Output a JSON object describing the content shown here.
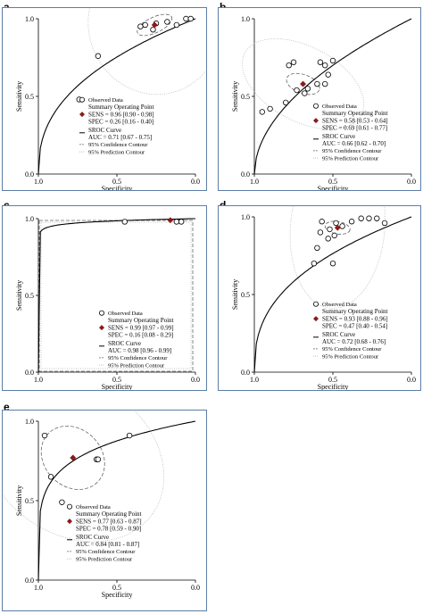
{
  "chart_data": [
    {
      "id": "a",
      "type": "scatter",
      "xlabel": "Specificity",
      "ylabel": "Sensitivity",
      "xticks": [
        "1.0",
        "0.5",
        "0.0"
      ],
      "yticks": [
        "0.0",
        "0.5",
        "1.0"
      ],
      "xlim": [
        1.0,
        0.0
      ],
      "ylim": [
        0.0,
        1.0
      ],
      "points": [
        {
          "spec": 0.74,
          "sens": 0.48
        },
        {
          "spec": 0.62,
          "sens": 0.76
        },
        {
          "spec": 0.35,
          "sens": 0.95
        },
        {
          "spec": 0.32,
          "sens": 0.96
        },
        {
          "spec": 0.27,
          "sens": 0.93
        },
        {
          "spec": 0.25,
          "sens": 0.97
        },
        {
          "spec": 0.18,
          "sens": 0.98
        },
        {
          "spec": 0.12,
          "sens": 0.96
        },
        {
          "spec": 0.06,
          "sens": 1.0
        },
        {
          "spec": 0.03,
          "sens": 1.0
        }
      ],
      "summary_point": {
        "spec": 0.26,
        "sens": 0.96
      },
      "curve_auc": 0.71,
      "legend": {
        "observed": "Observed Data",
        "summary": "Summary Operating Point",
        "sens": "SENS = 0.96 [0.90 - 0.98]",
        "spec": "SPEC = 0.26 [0.16 - 0.40]",
        "sroc": "SROC Curve",
        "auc": "AUC = 0.71 [0.67 - 0.75]",
        "conf": "95% Confidence Contour",
        "pred": "95% Prediction Contour"
      }
    },
    {
      "id": "b",
      "type": "scatter",
      "xlabel": "Specificity",
      "ylabel": "Sensitivity",
      "xticks": [
        "1.0",
        "0.5",
        "0.0"
      ],
      "yticks": [
        "0.0",
        "0.5",
        "1.0"
      ],
      "xlim": [
        1.0,
        0.0
      ],
      "ylim": [
        0.0,
        1.0
      ],
      "points": [
        {
          "spec": 0.95,
          "sens": 0.4
        },
        {
          "spec": 0.9,
          "sens": 0.42
        },
        {
          "spec": 0.8,
          "sens": 0.46
        },
        {
          "spec": 0.78,
          "sens": 0.7
        },
        {
          "spec": 0.75,
          "sens": 0.72
        },
        {
          "spec": 0.73,
          "sens": 0.54
        },
        {
          "spec": 0.68,
          "sens": 0.52
        },
        {
          "spec": 0.66,
          "sens": 0.55
        },
        {
          "spec": 0.6,
          "sens": 0.58
        },
        {
          "spec": 0.58,
          "sens": 0.72
        },
        {
          "spec": 0.55,
          "sens": 0.7
        },
        {
          "spec": 0.55,
          "sens": 0.58
        },
        {
          "spec": 0.53,
          "sens": 0.64
        },
        {
          "spec": 0.5,
          "sens": 0.73
        }
      ],
      "summary_point": {
        "spec": 0.69,
        "sens": 0.58
      },
      "curve_auc": 0.66,
      "legend": {
        "observed": "Observed Data",
        "summary": "Summary Operating Point",
        "sens": "SENS = 0.58 [0.53 - 0.64]",
        "spec": "SPEC = 0.69 [0.61 - 0.77]",
        "sroc": "SROC Curve",
        "auc": "AUC = 0.66 [0.62 - 0.70]",
        "conf": "95% Confidence Contour",
        "pred": "95% Prediction Contour"
      }
    },
    {
      "id": "c",
      "type": "scatter",
      "xlabel": "Specificity",
      "ylabel": "Sensitivity",
      "xticks": [
        "1.0",
        "0.5",
        "0.0"
      ],
      "yticks": [
        "0.0",
        "0.5",
        "1.0"
      ],
      "xlim": [
        1.0,
        0.0
      ],
      "ylim": [
        0.0,
        1.0
      ],
      "points": [
        {
          "spec": 0.45,
          "sens": 0.98
        },
        {
          "spec": 0.12,
          "sens": 0.98
        },
        {
          "spec": 0.09,
          "sens": 0.98
        }
      ],
      "summary_point": {
        "spec": 0.16,
        "sens": 0.99
      },
      "curve_auc": 0.98,
      "legend": {
        "observed": "Observed Data",
        "summary": "Summary Operating Point",
        "sens": "SENS = 0.99 [0.97 - 0.99]",
        "spec": "SPEC = 0.16 [0.08 - 0.29]",
        "sroc": "SROC Curve",
        "auc": "AUC = 0.98 [0.96 - 0.99]",
        "conf": "95% Confidence Contour",
        "pred": "95% Prediction Contour"
      }
    },
    {
      "id": "d",
      "type": "scatter",
      "xlabel": "Specificity",
      "ylabel": "Sensitivity",
      "xticks": [
        "1.0",
        "0.5",
        "0.0"
      ],
      "yticks": [
        "0.0",
        "0.5",
        "1.0"
      ],
      "xlim": [
        1.0,
        0.0
      ],
      "ylim": [
        0.0,
        1.0
      ],
      "points": [
        {
          "spec": 0.62,
          "sens": 0.7
        },
        {
          "spec": 0.6,
          "sens": 0.8
        },
        {
          "spec": 0.58,
          "sens": 0.9
        },
        {
          "spec": 0.57,
          "sens": 0.97
        },
        {
          "spec": 0.53,
          "sens": 0.86
        },
        {
          "spec": 0.52,
          "sens": 0.92
        },
        {
          "spec": 0.5,
          "sens": 0.7
        },
        {
          "spec": 0.49,
          "sens": 0.88
        },
        {
          "spec": 0.48,
          "sens": 0.96
        },
        {
          "spec": 0.44,
          "sens": 0.94
        },
        {
          "spec": 0.38,
          "sens": 0.97
        },
        {
          "spec": 0.32,
          "sens": 0.99
        },
        {
          "spec": 0.27,
          "sens": 0.99
        },
        {
          "spec": 0.22,
          "sens": 0.99
        },
        {
          "spec": 0.17,
          "sens": 0.96
        }
      ],
      "summary_point": {
        "spec": 0.47,
        "sens": 0.93
      },
      "curve_auc": 0.72,
      "legend": {
        "observed": "Observed Data",
        "summary": "Summary Operating Point",
        "sens": "SENS = 0.93 [0.88 - 0.96]",
        "spec": "SPEC = 0.47 [0.40 - 0.54]",
        "sroc": "SROC Curve",
        "auc": "AUC = 0.72 [0.68 - 0.76]",
        "conf": "95% Confidence Contour",
        "pred": "95% Prediction Contour"
      }
    },
    {
      "id": "e",
      "type": "scatter",
      "xlabel": "Specificity",
      "ylabel": "Sensitivity",
      "xticks": [
        "1.0",
        "0.5",
        "0.0"
      ],
      "yticks": [
        "0.0",
        "0.5",
        "1.0"
      ],
      "xlim": [
        1.0,
        0.0
      ],
      "ylim": [
        0.0,
        1.0
      ],
      "points": [
        {
          "spec": 0.96,
          "sens": 0.91
        },
        {
          "spec": 0.92,
          "sens": 0.65
        },
        {
          "spec": 0.85,
          "sens": 0.49
        },
        {
          "spec": 0.63,
          "sens": 0.76
        },
        {
          "spec": 0.62,
          "sens": 0.76
        },
        {
          "spec": 0.42,
          "sens": 0.91
        }
      ],
      "summary_point": {
        "spec": 0.78,
        "sens": 0.77
      },
      "curve_auc": 0.84,
      "legend": {
        "observed": "Observed Data",
        "summary": "Summary Operating Point",
        "sens": "SENS = 0.77 [0.63 - 0.87]",
        "spec": "SPEC = 0.78 [0.59 - 0.90]",
        "sroc": "SROC Curve",
        "auc": "AUC = 0.84 [0.81 - 0.87]",
        "conf": "95% Confidence Contour",
        "pred": "95% Prediction Contour"
      }
    }
  ],
  "colors": {
    "panel_border": "#5b7fa6",
    "summary_point": "#8b1a1a",
    "curve": "#000000",
    "confidence": "#666666",
    "prediction": "#b0b0b0"
  }
}
